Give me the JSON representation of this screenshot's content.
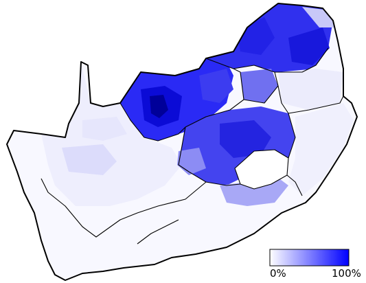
{
  "legend": {
    "min_label": "0%",
    "max_label": "100%",
    "color_low": "#ffffff",
    "color_high": "#0000ff"
  },
  "colors": {
    "border": "#000000",
    "background": "#ffffff"
  }
}
